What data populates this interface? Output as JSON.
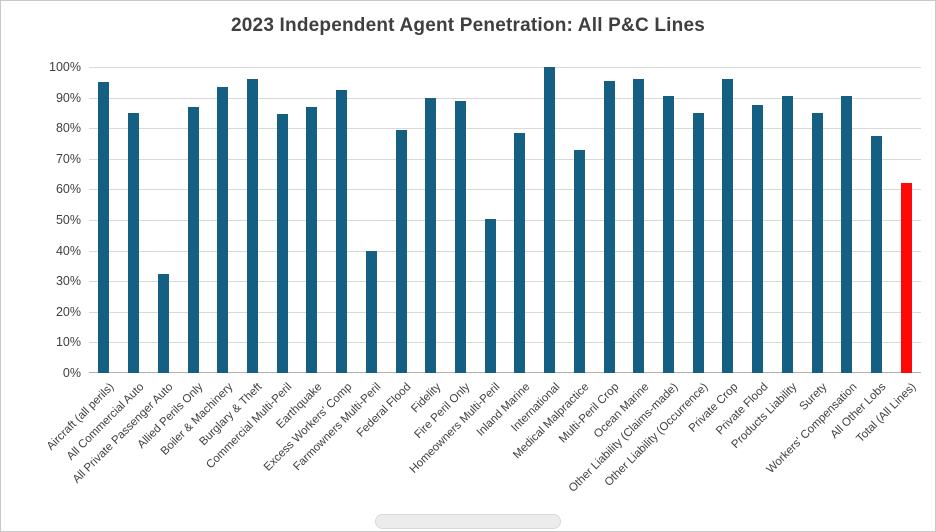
{
  "chart_data": {
    "type": "bar",
    "title": "2023 Independent Agent Penetration: All P&C Lines",
    "categories": [
      "Aircraft (all perils)",
      "All Commercial Auto",
      "All Private Passenger Auto",
      "Allied Perils Only",
      "Boiler & Machinery",
      "Burglary & Theft",
      "Commercial Multi-Peril",
      "Earthquake",
      "Excess Workers' Comp",
      "Farmowners Multi-Peril",
      "Federal Flood",
      "Fidelity",
      "Fire Peril Only",
      "Homeowners Multi-Peril",
      "Inland Marine",
      "International",
      "Medical Malpractice",
      "Multi-Peril Crop",
      "Ocean Marine",
      "Other Liability (Claims-made)",
      "Other Liability (Occurrence)",
      "Private Crop",
      "Private Flood",
      "Products Liability",
      "Surety",
      "Workers' Compensation",
      "All Other Lobs",
      "Total (All Lines)"
    ],
    "values": [
      95,
      85,
      32.5,
      87,
      93.5,
      96,
      84.5,
      87,
      92.5,
      40,
      79.5,
      90,
      89,
      50.5,
      78.5,
      100,
      73,
      95.5,
      96,
      90.5,
      85,
      96,
      87.5,
      90.5,
      85,
      90.5,
      77.5,
      62
    ],
    "xlabel": "",
    "ylabel": "",
    "ylim": [
      0,
      100
    ],
    "y_ticks": [
      "0%",
      "10%",
      "20%",
      "30%",
      "40%",
      "50%",
      "60%",
      "70%",
      "80%",
      "90%",
      "100%"
    ],
    "grid": true,
    "legend": "none",
    "bar_color": "#156082",
    "highlight_index": 27,
    "highlight_color": "#fe0808"
  }
}
